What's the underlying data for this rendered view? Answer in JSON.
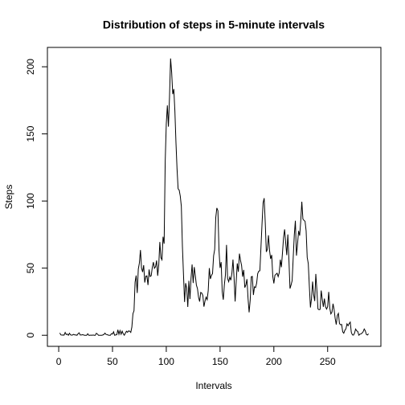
{
  "chart_data": {
    "type": "line",
    "title": "Distribution of steps in 5-minute intervals",
    "xlabel": "Intervals",
    "ylabel": "Steps",
    "color": "#000000",
    "x": [
      1,
      2,
      3,
      4,
      5,
      6,
      7,
      8,
      9,
      10,
      11,
      12,
      13,
      14,
      15,
      16,
      17,
      18,
      19,
      20,
      21,
      22,
      23,
      24,
      25,
      26,
      27,
      28,
      29,
      30,
      31,
      32,
      33,
      34,
      35,
      36,
      37,
      38,
      39,
      40,
      41,
      42,
      43,
      44,
      45,
      46,
      47,
      48,
      49,
      50,
      51,
      52,
      53,
      54,
      55,
      56,
      57,
      58,
      59,
      60,
      61,
      62,
      63,
      64,
      65,
      66,
      67,
      68,
      69,
      70,
      71,
      72,
      73,
      74,
      75,
      76,
      77,
      78,
      79,
      80,
      81,
      82,
      83,
      84,
      85,
      86,
      87,
      88,
      89,
      90,
      91,
      92,
      93,
      94,
      95,
      96,
      97,
      98,
      99,
      100,
      101,
      102,
      103,
      104,
      105,
      106,
      107,
      108,
      109,
      110,
      111,
      112,
      113,
      114,
      115,
      116,
      117,
      118,
      119,
      120,
      121,
      122,
      123,
      124,
      125,
      126,
      127,
      128,
      129,
      130,
      131,
      132,
      133,
      134,
      135,
      136,
      137,
      138,
      139,
      140,
      141,
      142,
      143,
      144,
      145,
      146,
      147,
      148,
      149,
      150,
      151,
      152,
      153,
      154,
      155,
      156,
      157,
      158,
      159,
      160,
      161,
      162,
      163,
      164,
      165,
      166,
      167,
      168,
      169,
      170,
      171,
      172,
      173,
      174,
      175,
      176,
      177,
      178,
      179,
      180,
      181,
      182,
      183,
      184,
      185,
      186,
      187,
      188,
      189,
      190,
      191,
      192,
      193,
      194,
      195,
      196,
      197,
      198,
      199,
      200,
      201,
      202,
      203,
      204,
      205,
      206,
      207,
      208,
      209,
      210,
      211,
      212,
      213,
      214,
      215,
      216,
      217,
      218,
      219,
      220,
      221,
      222,
      223,
      224,
      225,
      226,
      227,
      228,
      229,
      230,
      231,
      232,
      233,
      234,
      235,
      236,
      237,
      238,
      239,
      240,
      241,
      242,
      243,
      244,
      245,
      246,
      247,
      248,
      249,
      250,
      251,
      252,
      253,
      254,
      255,
      256,
      257,
      258,
      259,
      260,
      261,
      262,
      263,
      264,
      265,
      266,
      267,
      268,
      269,
      270,
      271,
      272,
      273,
      274,
      275,
      276,
      277,
      278,
      279,
      280,
      281,
      282,
      283,
      284,
      285,
      286,
      287,
      288
    ],
    "values": [
      1.7,
      0.3,
      0.1,
      0.2,
      0.1,
      2.1,
      0.5,
      0.9,
      0,
      1.5,
      0.3,
      0.1,
      0.3,
      0.7,
      0.2,
      0.3,
      0,
      1.1,
      1.8,
      0.2,
      0.2,
      0.4,
      0.3,
      0,
      0,
      0,
      1.1,
      0,
      0,
      0.1,
      0,
      0.2,
      0,
      0,
      1.5,
      0.9,
      0,
      0,
      0,
      0,
      0.2,
      0.6,
      1.6,
      0.6,
      0.5,
      0.1,
      0,
      0,
      1.2,
      0.9,
      2.6,
      0,
      0.3,
      0.4,
      4.1,
      0.7,
      3.5,
      0.8,
      3.1,
      1.1,
      0,
      1.6,
      3,
      2.2,
      3.3,
      3,
      2.1,
      6.1,
      16,
      18.3,
      39.5,
      44.5,
      31.5,
      49.3,
      53.8,
      63.5,
      50,
      47.1,
      52.2,
      39.3,
      44,
      44.2,
      37.4,
      49,
      43.8,
      44.4,
      50.5,
      54.5,
      49.9,
      51,
      55.7,
      44.3,
      52.3,
      69.5,
      57.8,
      56.2,
      73.4,
      68.2,
      129.4,
      157.5,
      171.2,
      155.4,
      177.3,
      206.2,
      195.9,
      179.6,
      183.4,
      167,
      143.5,
      124,
      109.1,
      108.1,
      103.7,
      96,
      66.2,
      45.2,
      24.8,
      38.8,
      35,
      21.1,
      40.6,
      27,
      42.4,
      52.7,
      38.9,
      50.8,
      44.3,
      37.4,
      34.7,
      28.3,
      25.1,
      31.9,
      31.4,
      29.7,
      21.3,
      25.5,
      28.4,
      26.5,
      33.4,
      50,
      42,
      44.6,
      46,
      59.2,
      63.9,
      87.7,
      94.8,
      92.8,
      63.4,
      50.2,
      54.5,
      32.4,
      26.5,
      37.7,
      45.1,
      67.3,
      42.3,
      39.9,
      43.3,
      41,
      46.2,
      56.4,
      42.8,
      25.1,
      40,
      53.5,
      47.3,
      60.8,
      55.8,
      52,
      43.6,
      48.7,
      35.5,
      37.5,
      41.8,
      27.5,
      17.1,
      26.1,
      43.6,
      43.8,
      30,
      36.1,
      35.5,
      38.8,
      46,
      47.8,
      48.1,
      65.3,
      82.9,
      98.7,
      102.1,
      84,
      62.1,
      64.1,
      74.5,
      63.2,
      56.9,
      59.8,
      43.9,
      38.6,
      44.7,
      45.5,
      46.2,
      43.7,
      46.6,
      56.3,
      50.7,
      61.2,
      72.7,
      78.9,
      68.9,
      59.7,
      75.1,
      56.5,
      34.8,
      37.5,
      40.7,
      58,
      74.7,
      85.3,
      59.3,
      67.8,
      77.7,
      74.2,
      85.3,
      99.5,
      86.6,
      85.6,
      84.9,
      77.8,
      58,
      53.4,
      36.3,
      20.7,
      27.4,
      40,
      30.2,
      25.5,
      45.7,
      33.5,
      19.6,
      19,
      19.3,
      33.3,
      26.8,
      21.2,
      27.3,
      21.3,
      19.5,
      21.3,
      32.3,
      20.2,
      15.9,
      17.2,
      23.5,
      19.2,
      12.5,
      8,
      14.7,
      16.3,
      8.7,
      7.8,
      8.1,
      2.6,
      1.5,
      3.7,
      4.8,
      8.5,
      7.1,
      8.7,
      9.8,
      2.2,
      0.3,
      0.1,
      1.6,
      4.6,
      3.3,
      2.8,
      0,
      0.8,
      1,
      1.6,
      2.6,
      4.7,
      3.3,
      0.6,
      0.2,
      1.1
    ],
    "xlim": [
      -10.5,
      299.5
    ],
    "xticks": [
      0,
      50,
      100,
      150,
      200,
      250
    ],
    "ylim": [
      -8.25,
      214.42
    ],
    "yticks": [
      0,
      50,
      100,
      150,
      200
    ]
  }
}
